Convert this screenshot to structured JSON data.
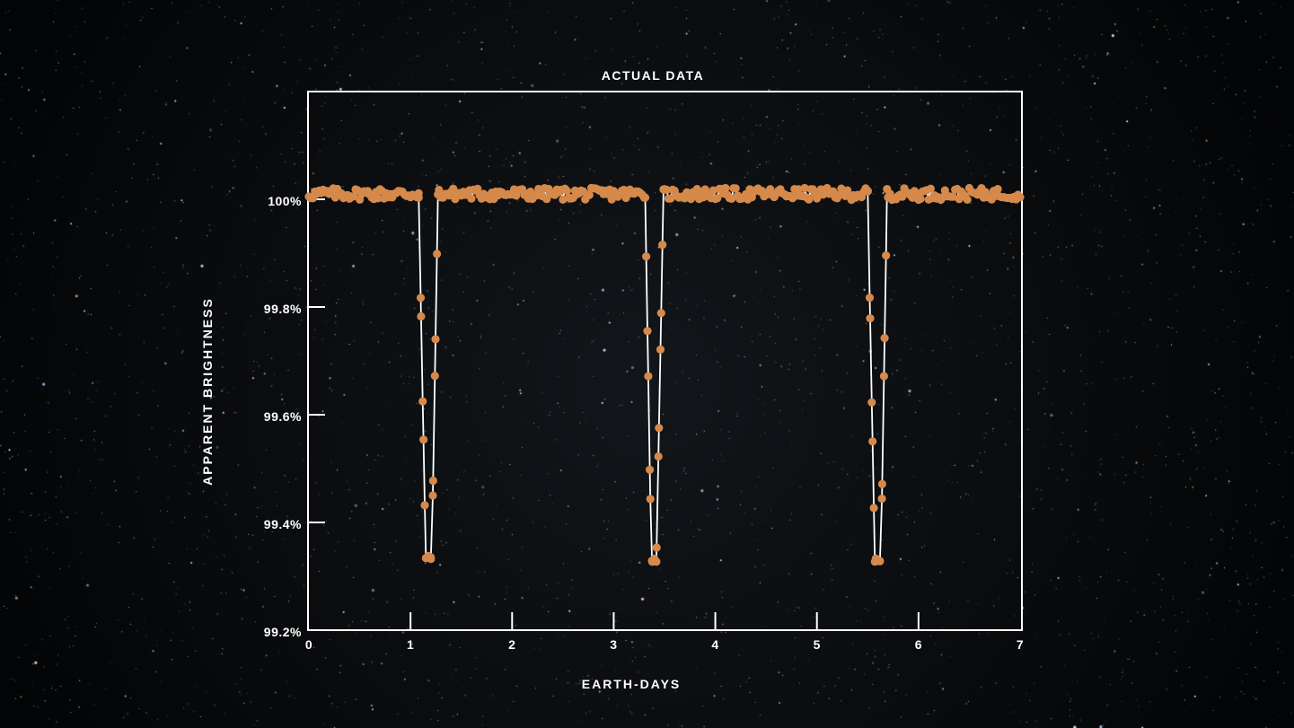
{
  "chart_data": {
    "type": "scatter",
    "title": "ACTUAL DATA",
    "xlabel": "EARTH-DAYS",
    "ylabel": "APPARENT BRIGHTNESS",
    "xlim": [
      0,
      7
    ],
    "ylim": [
      99.2,
      100.2
    ],
    "x_ticks": [
      "0",
      "1",
      "2",
      "3",
      "4",
      "5",
      "6",
      "7"
    ],
    "y_ticks": [
      {
        "value": 100.0,
        "label": "100%"
      },
      {
        "value": 99.8,
        "label": "99.8%"
      },
      {
        "value": 99.6,
        "label": "99.6%"
      },
      {
        "value": 99.4,
        "label": "99.4%"
      },
      {
        "value": 99.2,
        "label": "99.2%"
      }
    ],
    "baseline": 100.01,
    "transits": [
      {
        "ingress_start": 1.08,
        "ingress_end": 1.15,
        "egress_start": 1.21,
        "egress_end": 1.27,
        "depth_min": 99.335
      },
      {
        "ingress_start": 3.31,
        "ingress_end": 3.37,
        "egress_start": 3.42,
        "egress_end": 3.49,
        "depth_min": 99.33
      },
      {
        "ingress_start": 5.5,
        "ingress_end": 5.57,
        "egress_start": 5.63,
        "egress_end": 5.69,
        "depth_min": 99.33
      }
    ],
    "series": [
      {
        "color": "#d5894a",
        "marker": "circle",
        "fit_line_color": "#ffffff"
      }
    ],
    "grid": false,
    "legend": "none"
  }
}
